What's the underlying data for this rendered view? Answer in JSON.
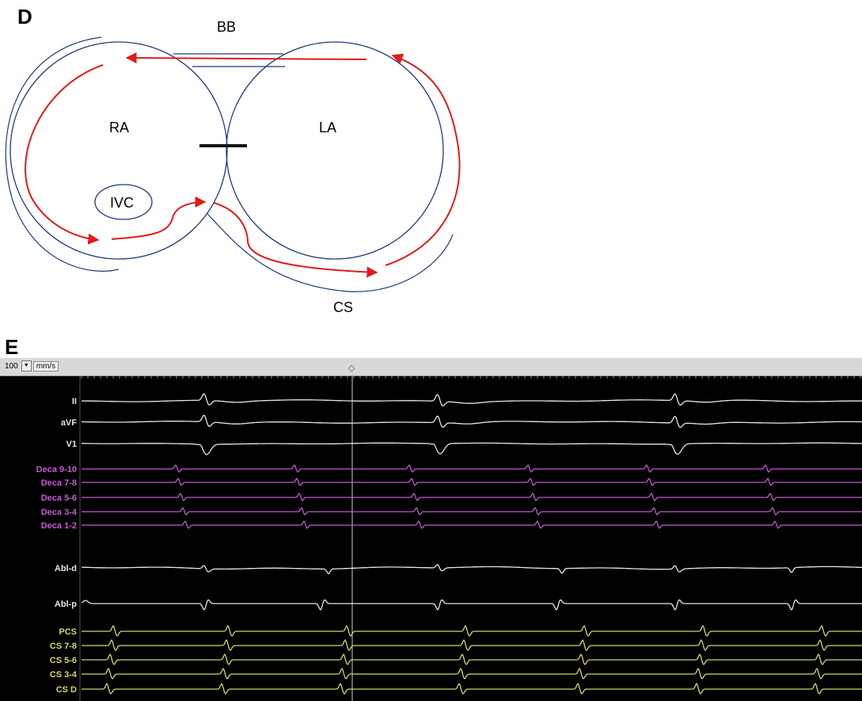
{
  "panels": {
    "d": {
      "letter": "D"
    },
    "e": {
      "letter": "E"
    }
  },
  "diagram": {
    "labels": {
      "bb": "BB",
      "ra": "RA",
      "la": "LA",
      "ivc": "IVC",
      "cs": "CS"
    },
    "colors": {
      "outline": "#1f3a7a",
      "arrow": "#e01b1b",
      "block": "#111111"
    }
  },
  "recording": {
    "toolbar": {
      "speed_value": "100",
      "speed_unit": "mm/s"
    },
    "colors": {
      "surface": "#e6e6e6",
      "deca": "#c05ccc",
      "abl": "#e6e6e6",
      "cs": "#d6d66a"
    },
    "channels": [
      {
        "label": "II",
        "group": "surface",
        "lead": "II"
      },
      {
        "label": "aVF",
        "group": "surface",
        "lead": "aVF"
      },
      {
        "label": "V1",
        "group": "surface",
        "lead": "V1"
      },
      {
        "label": "Deca 9-10",
        "group": "deca",
        "lead": "deca"
      },
      {
        "label": "Deca 7-8",
        "group": "deca",
        "lead": "deca"
      },
      {
        "label": "Deca 5-6",
        "group": "deca",
        "lead": "deca"
      },
      {
        "label": "Deca 3-4",
        "group": "deca",
        "lead": "deca"
      },
      {
        "label": "Deca 1-2",
        "group": "deca",
        "lead": "deca"
      },
      {
        "label": "Abl-d",
        "group": "abl",
        "lead": "abld"
      },
      {
        "label": "Abl-p",
        "group": "abl",
        "lead": "ablp"
      },
      {
        "label": "PCS",
        "group": "cs",
        "lead": "cs"
      },
      {
        "label": "CS 7-8",
        "group": "cs",
        "lead": "cs"
      },
      {
        "label": "CS 5-6",
        "group": "cs",
        "lead": "cs"
      },
      {
        "label": "CS 3-4",
        "group": "cs",
        "lead": "cs"
      },
      {
        "label": "CS D",
        "group": "cs",
        "lead": "cs"
      }
    ]
  }
}
